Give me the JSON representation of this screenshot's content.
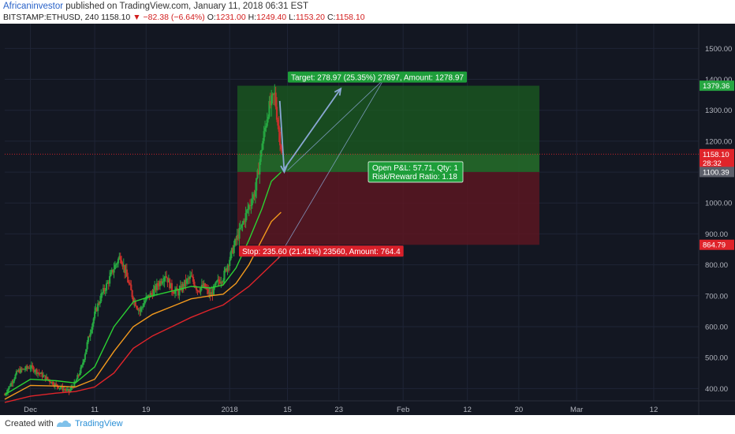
{
  "header": {
    "author": "Africaninvestor",
    "published": " published on TradingView.com, January 11, 2018 06:31 EST",
    "symbol": "BITSTAMP:ETHUSD, 240",
    "last": "1158.10",
    "change": "−82.38 (−6.64%)",
    "o_label": "O:",
    "o_value": "1231.00",
    "h_label": "H:",
    "h_value": "1249.40",
    "l_label": "L:",
    "l_value": "1153.20",
    "c_label": "C:",
    "c_value": "1158.10"
  },
  "footer": {
    "created": "Created with",
    "brand": "TradingView"
  },
  "colors": {
    "background": "#131722",
    "grid": "#1f2536",
    "up": "#26a641",
    "down": "#c6302b",
    "ema_fast": "#2bd133",
    "ema_mid": "#f39a1d",
    "ema_slow": "#e0242a",
    "profit_zone": "#1b5e20",
    "loss_zone": "#5f1622",
    "arrow": "#8aa8d4"
  },
  "chart_data": {
    "type": "candlestick",
    "ylim": [
      360,
      1580
    ],
    "y_ticks": [
      400,
      500,
      600,
      700,
      800,
      900,
      1000,
      1100,
      1200,
      1300,
      1400,
      1500
    ],
    "y_tick_labels": [
      "400.00",
      "500.00",
      "600.00",
      "700.00",
      "800.00",
      "900.00",
      "1000.00",
      "1100.00",
      "1200.00",
      "1300.00",
      "1400.00",
      "1500.00"
    ],
    "x_ticks": [
      {
        "day": 4,
        "label": "Dec"
      },
      {
        "day": 14,
        "label": "11"
      },
      {
        "day": 22,
        "label": "19"
      },
      {
        "day": 35,
        "label": "2018"
      },
      {
        "day": 44,
        "label": "15"
      },
      {
        "day": 52,
        "label": "23"
      },
      {
        "day": 62,
        "label": "Feb"
      },
      {
        "day": 72,
        "label": "12"
      },
      {
        "day": 80,
        "label": "20"
      },
      {
        "day": 89,
        "label": "Mar"
      },
      {
        "day": 101,
        "label": "12"
      }
    ],
    "x_range_days": [
      0,
      108
    ],
    "price_path": [
      [
        0,
        380
      ],
      [
        2,
        455
      ],
      [
        4,
        470
      ],
      [
        6,
        440
      ],
      [
        8,
        410
      ],
      [
        10,
        390
      ],
      [
        11,
        420
      ],
      [
        12,
        470
      ],
      [
        13,
        560
      ],
      [
        14,
        640
      ],
      [
        15,
        700
      ],
      [
        16,
        740
      ],
      [
        17,
        790
      ],
      [
        18,
        830
      ],
      [
        19,
        760
      ],
      [
        20,
        690
      ],
      [
        21,
        650
      ],
      [
        22,
        690
      ],
      [
        23,
        710
      ],
      [
        24,
        740
      ],
      [
        25,
        770
      ],
      [
        26,
        720
      ],
      [
        27,
        710
      ],
      [
        28,
        740
      ],
      [
        29,
        760
      ],
      [
        30,
        720
      ],
      [
        31,
        730
      ],
      [
        32,
        700
      ],
      [
        33,
        740
      ],
      [
        34,
        760
      ],
      [
        35,
        820
      ],
      [
        36,
        880
      ],
      [
        37,
        930
      ],
      [
        38,
        990
      ],
      [
        39,
        1040
      ],
      [
        40,
        1180
      ],
      [
        41,
        1300
      ],
      [
        42,
        1350
      ],
      [
        42.6,
        1240
      ],
      [
        43.2,
        1158
      ]
    ],
    "ema_fast": [
      [
        0,
        380
      ],
      [
        4,
        430
      ],
      [
        8,
        425
      ],
      [
        11,
        418
      ],
      [
        14,
        470
      ],
      [
        17,
        600
      ],
      [
        20,
        680
      ],
      [
        23,
        700
      ],
      [
        26,
        715
      ],
      [
        29,
        730
      ],
      [
        32,
        725
      ],
      [
        34,
        735
      ],
      [
        36,
        790
      ],
      [
        38,
        880
      ],
      [
        40,
        980
      ],
      [
        41.5,
        1070
      ],
      [
        43,
        1100
      ]
    ],
    "ema_mid": [
      [
        0,
        365
      ],
      [
        4,
        410
      ],
      [
        8,
        408
      ],
      [
        11,
        405
      ],
      [
        14,
        430
      ],
      [
        17,
        520
      ],
      [
        20,
        600
      ],
      [
        23,
        640
      ],
      [
        26,
        665
      ],
      [
        29,
        690
      ],
      [
        32,
        700
      ],
      [
        34,
        705
      ],
      [
        36,
        740
      ],
      [
        38,
        800
      ],
      [
        40,
        880
      ],
      [
        41.5,
        940
      ],
      [
        43,
        970
      ]
    ],
    "ema_slow": [
      [
        0,
        355
      ],
      [
        4,
        375
      ],
      [
        8,
        385
      ],
      [
        11,
        390
      ],
      [
        14,
        405
      ],
      [
        17,
        450
      ],
      [
        20,
        530
      ],
      [
        23,
        570
      ],
      [
        26,
        600
      ],
      [
        29,
        630
      ],
      [
        32,
        655
      ],
      [
        34,
        670
      ],
      [
        36,
        700
      ],
      [
        38,
        730
      ],
      [
        40,
        770
      ],
      [
        42,
        810
      ],
      [
        43,
        830
      ]
    ],
    "position": {
      "entry": 1100.39,
      "target": 1379.36,
      "stop": 864.79,
      "start_day": 36.2,
      "end_day": 83.2,
      "target_label": "Target: 278.97 (25.35%) 27897, Amount: 1278.97",
      "stop_label": "Stop: 235.60 (21.41%) 23560, Amount: 764.4",
      "pnl_label_1": "Open P&L: 57.71, Qty: 1",
      "pnl_label_2": "Risk/Reward Ratio: 1.18"
    },
    "price_markers": [
      {
        "value": 1379.36,
        "label": "1379.36",
        "color": "#26a641"
      },
      {
        "value": 1158.1,
        "label": "1158.10",
        "color": "#e0242a"
      },
      {
        "value": 1130,
        "label": "28:32",
        "color": "#e0242a"
      },
      {
        "value": 1100.39,
        "label": "1100.39",
        "color": "#5d606b"
      },
      {
        "value": 864.79,
        "label": "864.79",
        "color": "#e0242a"
      }
    ],
    "last_price_line": 1158.1,
    "arrows": [
      {
        "from": [
          42.8,
          1330
        ],
        "to": [
          43.5,
          1100
        ]
      },
      {
        "from": [
          43.5,
          1110
        ],
        "to": [
          52.3,
          1370
        ]
      }
    ],
    "trend_lines": [
      {
        "from": [
          42.5,
          820
        ],
        "to": [
          59,
          1400
        ]
      },
      {
        "from": [
          44,
          1105
        ],
        "to": [
          59,
          1400
        ]
      }
    ]
  }
}
